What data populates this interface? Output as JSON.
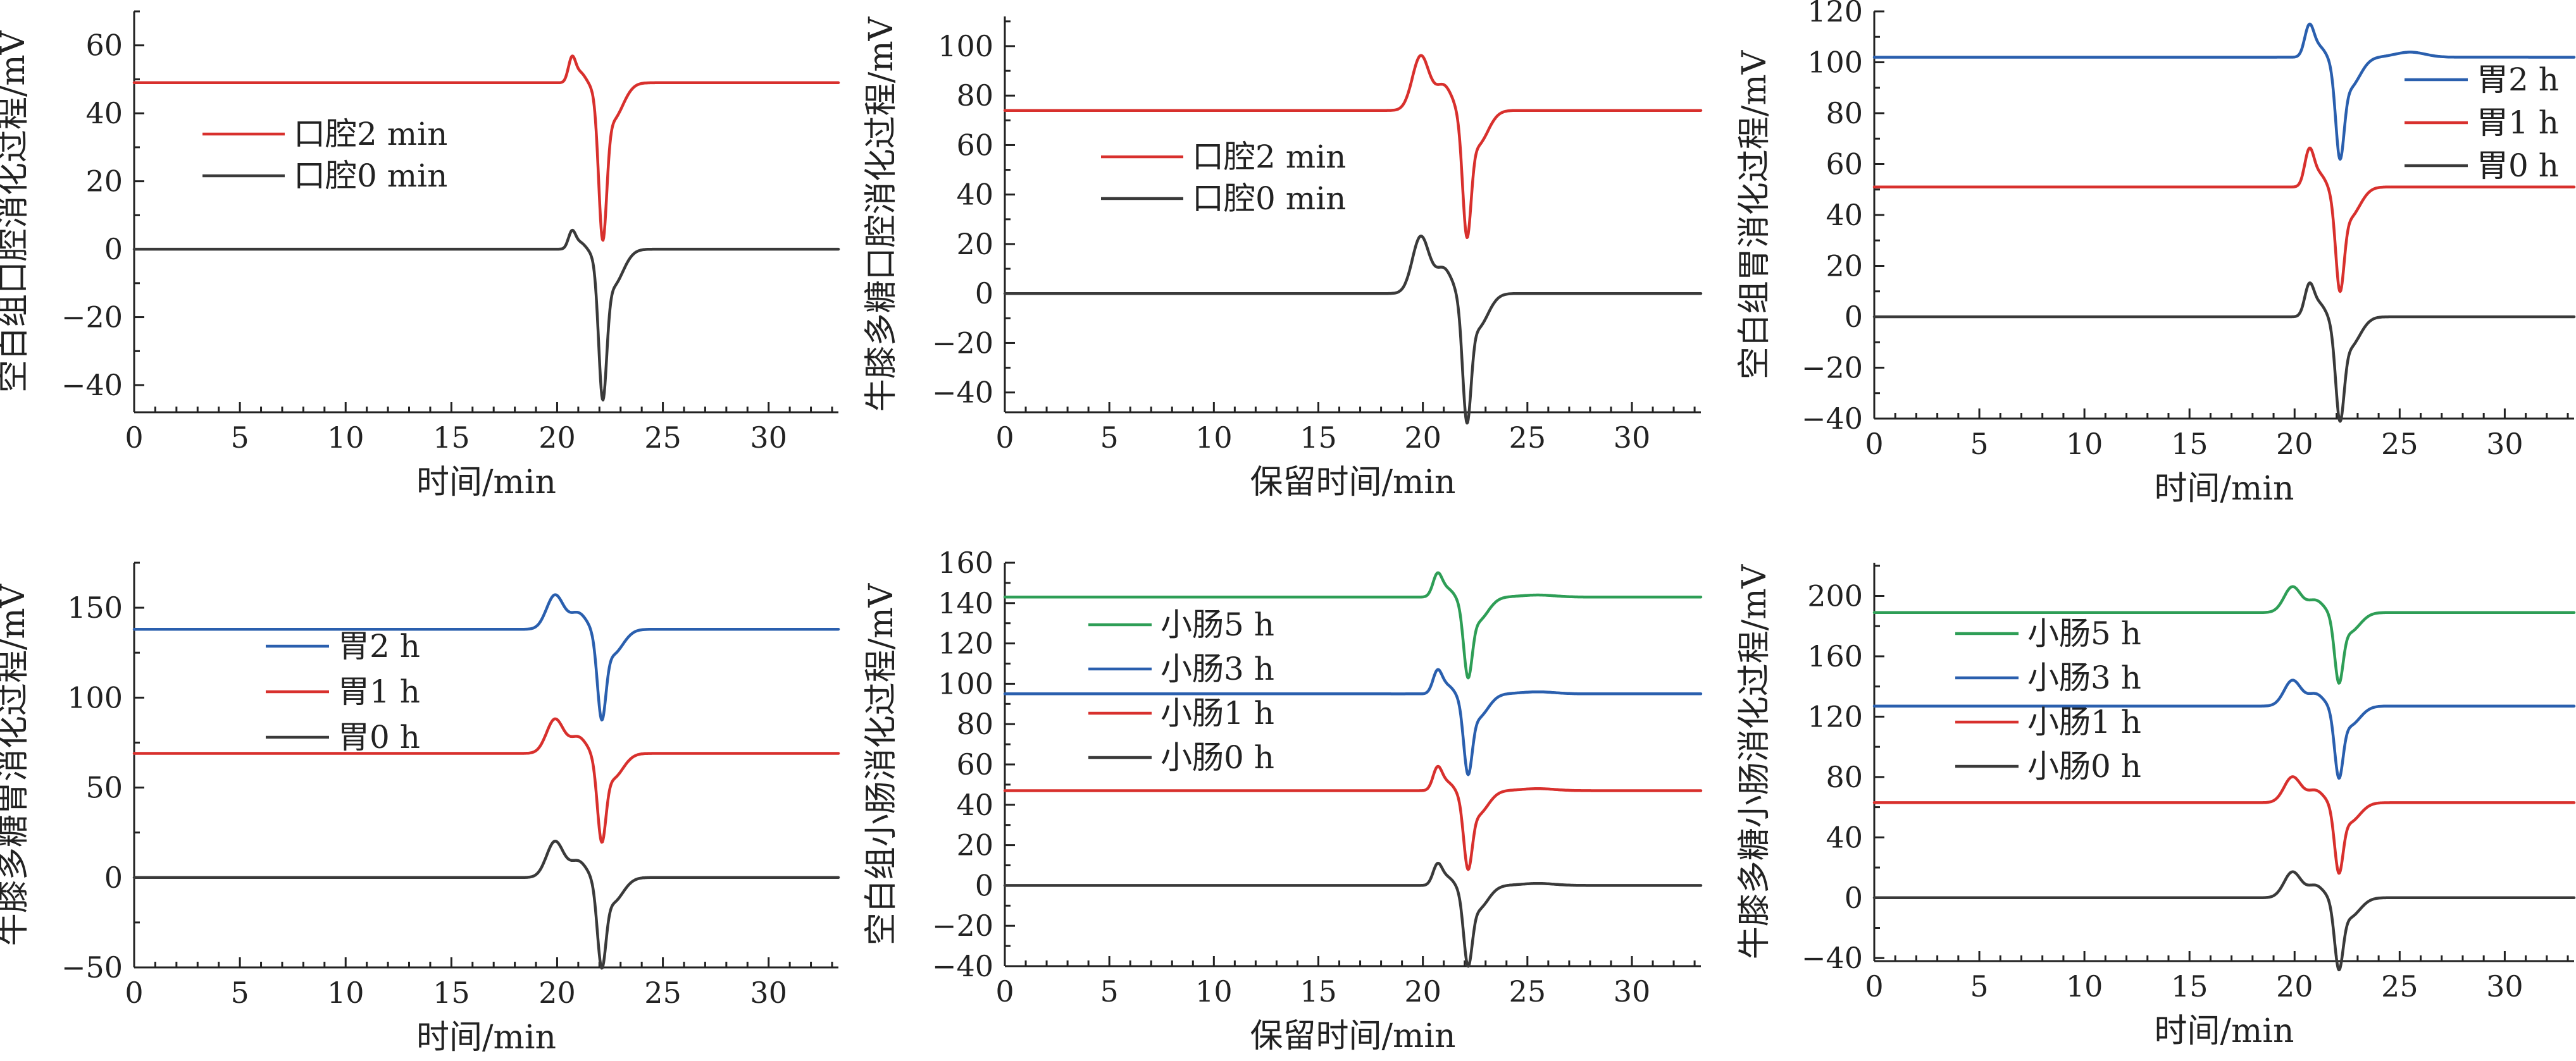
{
  "chart_data": [
    {
      "type": "line",
      "xlabel": "时间/min",
      "ylabel": "空白组口腔消化过程/mV",
      "xlim": [
        0,
        33.3
      ],
      "ylim": [
        -48,
        70
      ],
      "xticks": [
        0,
        5,
        10,
        15,
        20,
        25,
        30
      ],
      "yticks": [
        -40,
        -20,
        0,
        20,
        40,
        60
      ],
      "legend": "upper-left",
      "series": [
        {
          "name": "口腔2 min",
          "color": "#d8302d",
          "baseline": 49,
          "peaks": [
            [
              20.7,
              7,
              0.17
            ],
            [
              21.1,
              3,
              0.25
            ],
            [
              22.15,
              -39,
              0.19
            ],
            [
              22.6,
              -11,
              0.5
            ]
          ]
        },
        {
          "name": "口腔0 min",
          "color": "#3a3a3a",
          "baseline": 0,
          "peaks": [
            [
              20.7,
              5,
              0.17
            ],
            [
              21.1,
              2,
              0.25
            ],
            [
              22.15,
              -37,
              0.19
            ],
            [
              22.6,
              -11,
              0.5
            ]
          ]
        }
      ]
    },
    {
      "type": "line",
      "xlabel": "保留时间/min",
      "ylabel": "牛膝多糖口腔消化过程/mV",
      "xlim": [
        0,
        33.3
      ],
      "ylim": [
        -48,
        112
      ],
      "xticks": [
        0,
        5,
        10,
        15,
        20,
        25,
        30
      ],
      "yticks": [
        -40,
        -20,
        0,
        20,
        40,
        60,
        80,
        100
      ],
      "legend": "upper-left",
      "series": [
        {
          "name": "口腔2 min",
          "color": "#d8302d",
          "baseline": 74,
          "peaks": [
            [
              19.9,
              22,
              0.4
            ],
            [
              21.0,
              10,
              0.4
            ],
            [
              22.1,
              -43,
              0.2
            ],
            [
              22.6,
              -14,
              0.5
            ]
          ]
        },
        {
          "name": "口腔0 min",
          "color": "#3a3a3a",
          "baseline": 0,
          "peaks": [
            [
              19.9,
              23,
              0.4
            ],
            [
              21.0,
              10,
              0.4
            ],
            [
              22.1,
              -44,
              0.2
            ],
            [
              22.6,
              -14,
              0.5
            ]
          ]
        }
      ]
    },
    {
      "type": "line",
      "xlabel": "时间/min",
      "ylabel": "空白组胃消化过程/mV",
      "xlim": [
        0,
        33.3
      ],
      "ylim": [
        -40,
        120
      ],
      "xticks": [
        0,
        5,
        10,
        15,
        20,
        25,
        30
      ],
      "yticks": [
        -40,
        -20,
        0,
        20,
        40,
        60,
        80,
        100,
        120
      ],
      "legend": "upper-right",
      "series": [
        {
          "name": "胃2 h",
          "color": "#2a5fae",
          "baseline": 102,
          "peaks": [
            [
              20.7,
              12,
              0.22
            ],
            [
              21.2,
              4,
              0.3
            ],
            [
              22.15,
              -32,
              0.2
            ],
            [
              22.6,
              -12,
              0.5
            ],
            [
              25.5,
              2,
              0.7
            ]
          ]
        },
        {
          "name": "胃1 h",
          "color": "#d8302d",
          "baseline": 51,
          "peaks": [
            [
              20.7,
              14,
              0.22
            ],
            [
              21.2,
              5,
              0.3
            ],
            [
              22.15,
              -33,
              0.2
            ],
            [
              22.6,
              -12,
              0.5
            ]
          ]
        },
        {
          "name": "胃0 h",
          "color": "#3a3a3a",
          "baseline": 0,
          "peaks": [
            [
              20.7,
              12,
              0.22
            ],
            [
              21.2,
              5,
              0.3
            ],
            [
              22.15,
              -33,
              0.2
            ],
            [
              22.6,
              -12,
              0.5
            ]
          ]
        }
      ]
    },
    {
      "type": "line",
      "xlabel": "时间/min",
      "ylabel": "牛膝多糖胃消化过程/mV",
      "xlim": [
        0,
        33.3
      ],
      "ylim": [
        -50,
        175
      ],
      "xticks": [
        0,
        5,
        10,
        15,
        20,
        25,
        30
      ],
      "yticks": [
        -50,
        0,
        50,
        100,
        150
      ],
      "legend": "center",
      "series": [
        {
          "name": "胃2 h",
          "color": "#2a5fae",
          "baseline": 138,
          "peaks": [
            [
              19.9,
              19,
              0.4
            ],
            [
              21.0,
              9,
              0.4
            ],
            [
              22.1,
              -42,
              0.2
            ],
            [
              22.6,
              -14,
              0.5
            ]
          ]
        },
        {
          "name": "胃1 h",
          "color": "#d8302d",
          "baseline": 69,
          "peaks": [
            [
              19.9,
              19,
              0.4
            ],
            [
              21.0,
              9,
              0.4
            ],
            [
              22.1,
              -41,
              0.2
            ],
            [
              22.6,
              -14,
              0.5
            ]
          ]
        },
        {
          "name": "胃0 h",
          "color": "#3a3a3a",
          "baseline": 0,
          "peaks": [
            [
              19.9,
              20,
              0.4
            ],
            [
              21.0,
              9,
              0.4
            ],
            [
              22.1,
              -42,
              0.2
            ],
            [
              22.6,
              -14,
              0.5
            ]
          ]
        }
      ]
    },
    {
      "type": "line",
      "xlabel": "保留时间/min",
      "ylabel": "空白组小肠消化过程/mV",
      "xlim": [
        0,
        33.3
      ],
      "ylim": [
        -40,
        160
      ],
      "xticks": [
        0,
        5,
        10,
        15,
        20,
        25,
        30
      ],
      "yticks": [
        -40,
        -20,
        0,
        20,
        40,
        60,
        80,
        100,
        120,
        140,
        160
      ],
      "legend": "center-left",
      "series": [
        {
          "name": "小肠5 h",
          "color": "#2e9e56",
          "baseline": 143,
          "peaks": [
            [
              20.7,
              11,
              0.22
            ],
            [
              21.2,
              4,
              0.3
            ],
            [
              22.15,
              -32,
              0.2
            ],
            [
              22.6,
              -12,
              0.5
            ],
            [
              25.5,
              1,
              0.8
            ]
          ]
        },
        {
          "name": "小肠3 h",
          "color": "#2a5fae",
          "baseline": 95,
          "peaks": [
            [
              20.7,
              11,
              0.22
            ],
            [
              21.2,
              4,
              0.3
            ],
            [
              22.15,
              -32,
              0.2
            ],
            [
              22.6,
              -12,
              0.5
            ],
            [
              25.5,
              1,
              0.8
            ]
          ]
        },
        {
          "name": "小肠1 h",
          "color": "#d8302d",
          "baseline": 47,
          "peaks": [
            [
              20.7,
              11,
              0.22
            ],
            [
              21.2,
              4,
              0.3
            ],
            [
              22.15,
              -31,
              0.2
            ],
            [
              22.6,
              -12,
              0.5
            ],
            [
              25.5,
              1,
              0.8
            ]
          ]
        },
        {
          "name": "小肠0 h",
          "color": "#3a3a3a",
          "baseline": 0,
          "peaks": [
            [
              20.7,
              10,
              0.22
            ],
            [
              21.2,
              4,
              0.3
            ],
            [
              22.15,
              -32,
              0.2
            ],
            [
              22.6,
              -12,
              0.5
            ],
            [
              25.5,
              1,
              0.8
            ]
          ]
        }
      ]
    },
    {
      "type": "line",
      "xlabel": "时间/min",
      "ylabel": "牛膝多糖小肠消化过程/mV",
      "xlim": [
        0,
        33.3
      ],
      "ylim": [
        -42,
        222
      ],
      "xticks": [
        0,
        5,
        10,
        15,
        20,
        25,
        30
      ],
      "yticks": [
        -40,
        0,
        40,
        80,
        120,
        160,
        200
      ],
      "legend": "center-left",
      "series": [
        {
          "name": "小肠5 h",
          "color": "#2e9e56",
          "baseline": 189,
          "peaks": [
            [
              19.9,
              17,
              0.4
            ],
            [
              21.0,
              8,
              0.4
            ],
            [
              22.1,
              -39,
              0.2
            ],
            [
              22.6,
              -13,
              0.5
            ]
          ]
        },
        {
          "name": "小肠3 h",
          "color": "#2a5fae",
          "baseline": 127,
          "peaks": [
            [
              19.9,
              17,
              0.4
            ],
            [
              21.0,
              8,
              0.4
            ],
            [
              22.1,
              -40,
              0.2
            ],
            [
              22.6,
              -13,
              0.5
            ]
          ]
        },
        {
          "name": "小肠1 h",
          "color": "#d8302d",
          "baseline": 63,
          "peaks": [
            [
              19.9,
              17,
              0.4
            ],
            [
              21.0,
              8,
              0.4
            ],
            [
              22.1,
              -39,
              0.2
            ],
            [
              22.6,
              -13,
              0.5
            ]
          ]
        },
        {
          "name": "小肠0 h",
          "color": "#3a3a3a",
          "baseline": 0,
          "peaks": [
            [
              19.9,
              17,
              0.4
            ],
            [
              21.0,
              8,
              0.4
            ],
            [
              22.1,
              -40,
              0.2
            ],
            [
              22.6,
              -13,
              0.5
            ]
          ]
        }
      ]
    }
  ]
}
